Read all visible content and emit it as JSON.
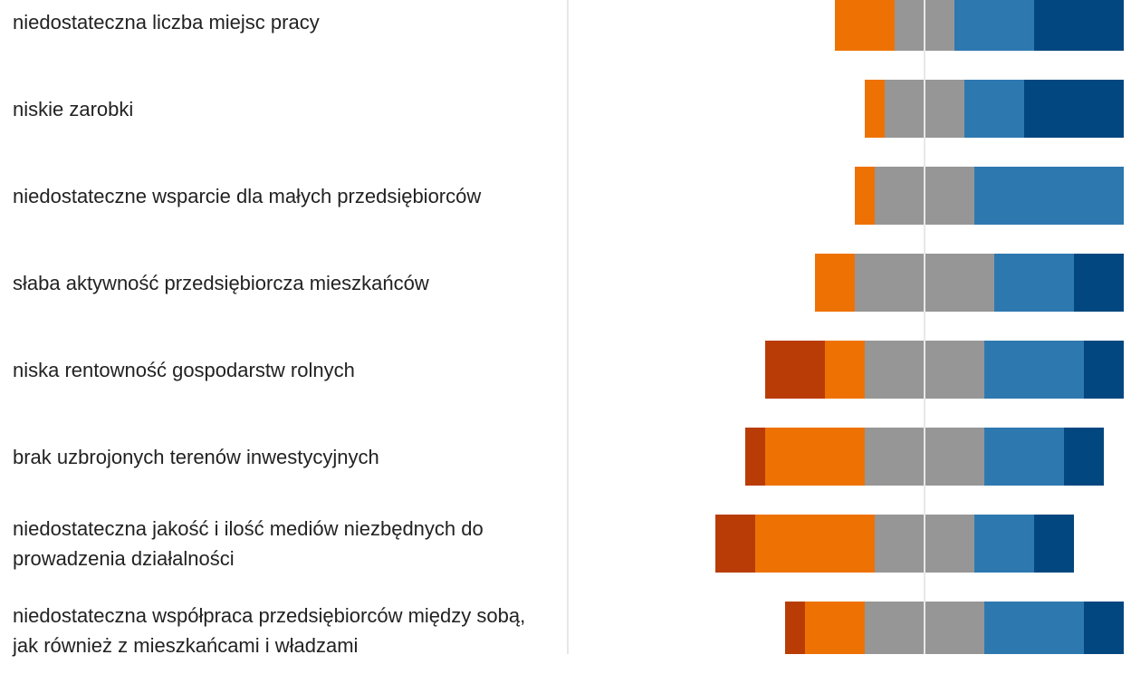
{
  "chart_data": {
    "type": "diverging-stacked-bar",
    "categories": [
      "niedostateczna liczba miejsc pracy",
      "niskie zarobki",
      "niedostateczne wsparcie dla małych przedsiębiorców",
      "słaba aktywność przedsiębiorcza mieszkańców",
      "niska rentowność gospodarstw rolnych",
      "brak uzbrojonych terenów inwestycyjnych",
      "niedostateczna jakość i ilość mediów niezbędnych do prowadzenia działalności",
      "niedostateczna współpraca przedsiębiorców między sobą, jak również z mieszkańcami i władzami"
    ],
    "series": [
      {
        "color": "#b93c06",
        "values": [
          0,
          0,
          0,
          0,
          6,
          2,
          4,
          2
        ]
      },
      {
        "color": "#ee7203",
        "values": [
          6,
          2,
          2,
          4,
          4,
          10,
          12,
          6
        ]
      },
      {
        "color": "#969696",
        "values": [
          6,
          8,
          10,
          14,
          12,
          12,
          10,
          12
        ]
      },
      {
        "color": "#2e78b0",
        "values": [
          8,
          6,
          15,
          8,
          10,
          8,
          6,
          10
        ]
      },
      {
        "color": "#02477f",
        "values": [
          9,
          10,
          0,
          5,
          4,
          4,
          4,
          4
        ]
      }
    ]
  }
}
